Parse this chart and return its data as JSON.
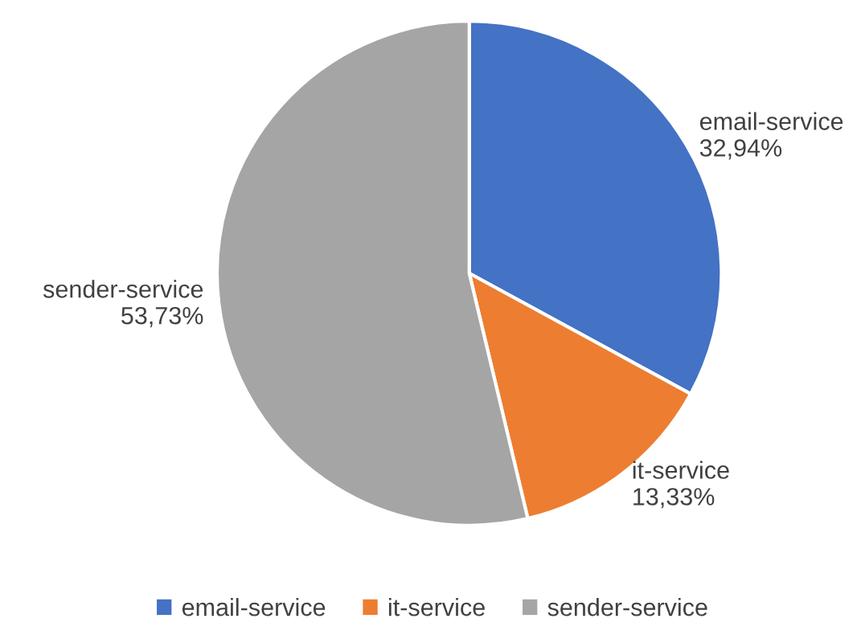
{
  "chart_data": {
    "type": "pie",
    "categories": [
      "email-service",
      "it-service",
      "sender-service"
    ],
    "values": [
      32.94,
      13.33,
      53.73
    ],
    "value_labels": [
      "32,94%",
      "13,33%",
      "53,73%"
    ],
    "colors": [
      "#4472c4",
      "#ed7d31",
      "#a5a5a5"
    ],
    "legend": "bottom"
  }
}
